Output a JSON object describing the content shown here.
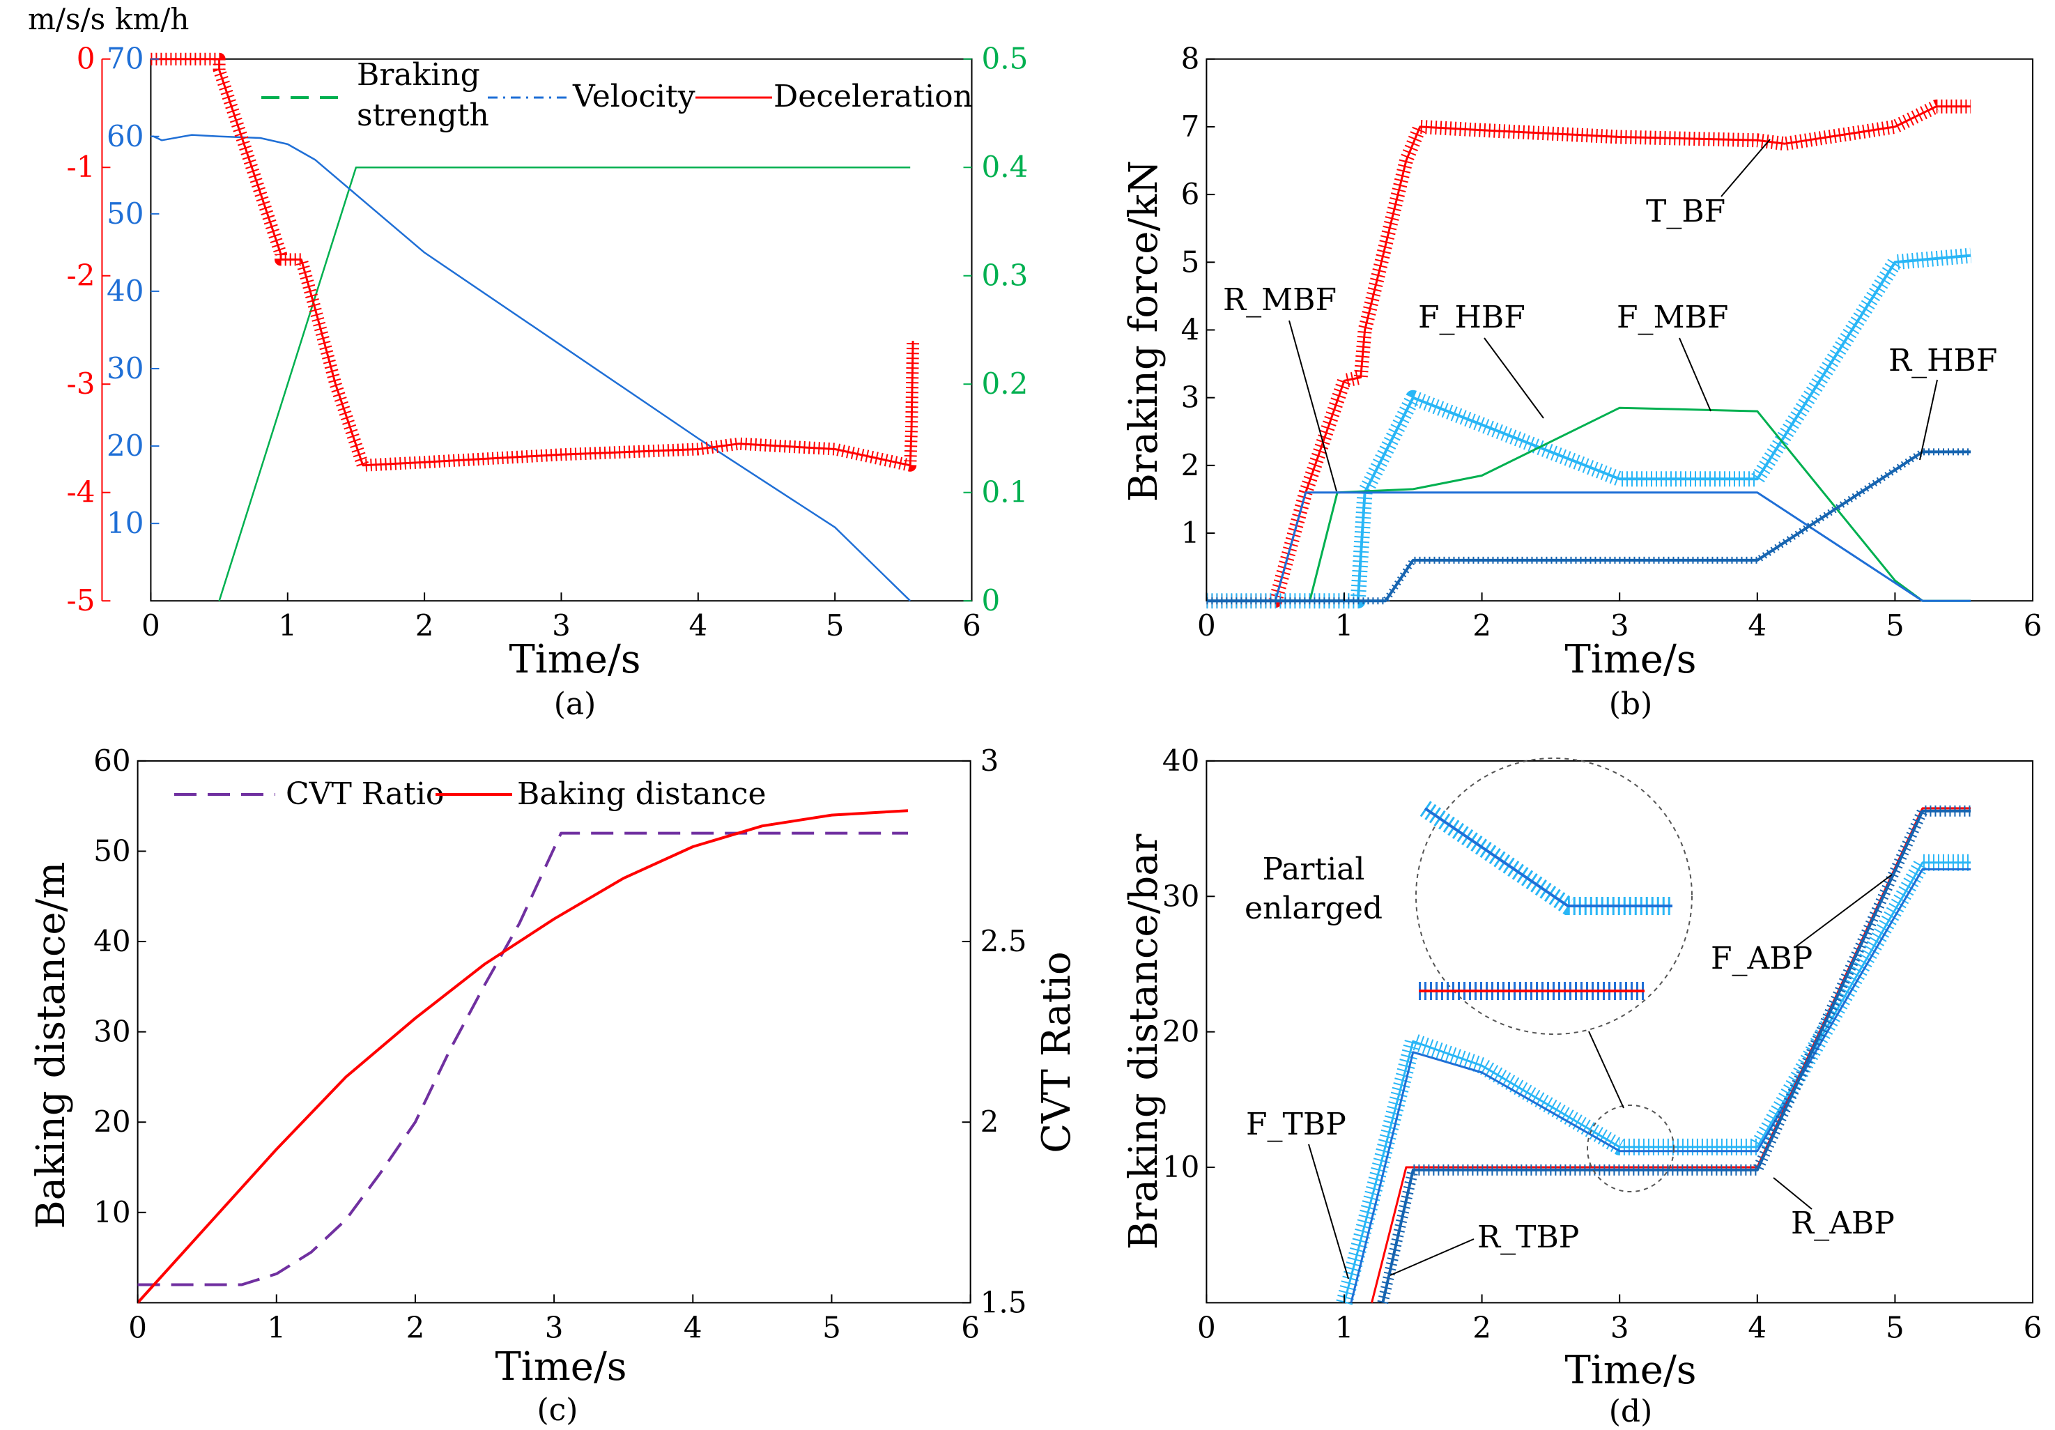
{
  "colors": {
    "red": "#ff0000",
    "green": "#00b050",
    "blue": "#1f6fd6",
    "dark_blue": "#1664b0",
    "light_blue": "#29b6f6",
    "purple": "#7030a0",
    "black": "#000000"
  },
  "chart_data": [
    {
      "id": "a",
      "type": "line",
      "caption": "(a)",
      "xlabel": "Time/s",
      "xlim": [
        0,
        6
      ],
      "xticks": [
        "0",
        "1",
        "2",
        "3",
        "4",
        "5",
        "6"
      ],
      "y_axes": [
        {
          "unit": "m/s/s",
          "ylim": [
            -5,
            0
          ],
          "ticks": [
            "0",
            "-1",
            "-2",
            "-3",
            "-4",
            "-5"
          ],
          "color": "#ff0000"
        },
        {
          "unit": "km/h",
          "ylim": [
            0,
            70
          ],
          "ticks": [
            "70",
            "60",
            "50",
            "40",
            "30",
            "20",
            "10"
          ],
          "color": "#1f6fd6"
        },
        {
          "unit": "",
          "ylim": [
            0,
            0.5
          ],
          "ticks": [
            "0.5",
            "0.4",
            "0.3",
            "0.2",
            "0.1",
            "0"
          ],
          "color": "#00b050"
        }
      ],
      "legend": [
        "Braking",
        "strength",
        "Velocity",
        "Deceleration"
      ],
      "series": [
        {
          "name": "Braking strength",
          "axis": 2,
          "color": "#00b050",
          "x": [
            0.5,
            1.5,
            5.55
          ],
          "y": [
            0,
            0.4,
            0.4
          ]
        },
        {
          "name": "Velocity",
          "axis": 1,
          "color": "#1f6fd6",
          "x": [
            0,
            0.02,
            0.08,
            0.3,
            0.5,
            0.8,
            1.0,
            1.2,
            1.4,
            1.6,
            2.0,
            3.0,
            4.0,
            5.0,
            5.55
          ],
          "y": [
            60,
            60,
            59.5,
            60.2,
            60,
            59.8,
            59,
            57,
            54,
            51,
            45,
            33,
            21,
            9.5,
            0
          ]
        },
        {
          "name": "Deceleration",
          "axis": 0,
          "color": "#ff0000",
          "x": [
            0,
            0.5,
            0.5,
            0.95,
            0.95,
            1.1,
            1.2,
            1.35,
            1.55,
            2.0,
            3.0,
            4.0,
            4.3,
            5.0,
            5.55,
            5.56,
            5.57
          ],
          "y": [
            0,
            0,
            -0.1,
            -1.8,
            -1.85,
            -1.85,
            -2.3,
            -3.0,
            -3.75,
            -3.72,
            -3.65,
            -3.6,
            -3.55,
            -3.6,
            -3.75,
            -3.4,
            -2.6
          ]
        }
      ]
    },
    {
      "id": "b",
      "type": "line",
      "caption": "(b)",
      "xlabel": "Time/s",
      "ylabel": "Braking force/kN",
      "xlim": [
        0,
        6
      ],
      "ylim": [
        0,
        8
      ],
      "xticks": [
        "0",
        "1",
        "2",
        "3",
        "4",
        "5",
        "6"
      ],
      "yticks": [
        "1",
        "2",
        "3",
        "4",
        "5",
        "6",
        "7",
        "8"
      ],
      "annotations": [
        "R_MBF",
        "F_HBF",
        "F_MBF",
        "R_HBF",
        "T_BF"
      ],
      "series": [
        {
          "name": "T_BF",
          "color": "#ff0000",
          "x": [
            0,
            0.5,
            0.72,
            1.0,
            1.12,
            1.15,
            1.45,
            1.55,
            2.0,
            3.0,
            4.0,
            4.2,
            5.0,
            5.3,
            5.55
          ],
          "y": [
            0,
            0,
            1.6,
            3.25,
            3.3,
            4.0,
            6.5,
            7.0,
            6.95,
            6.85,
            6.8,
            6.75,
            7.0,
            7.3,
            7.3
          ]
        },
        {
          "name": "F_HBF",
          "color": "#29b6f6",
          "x": [
            0,
            1.1,
            1.15,
            1.5,
            2.0,
            3.0,
            4.0,
            5.0,
            5.55
          ],
          "y": [
            0,
            0,
            1.6,
            3.0,
            2.6,
            1.8,
            1.8,
            5.0,
            5.1
          ]
        },
        {
          "name": "F_MBF",
          "color": "#00b050",
          "x": [
            0,
            0.75,
            0.95,
            1.5,
            2.0,
            3.0,
            4.0,
            5.0,
            5.2,
            5.55
          ],
          "y": [
            0,
            0,
            1.6,
            1.65,
            1.85,
            2.85,
            2.8,
            0.3,
            0,
            0
          ]
        },
        {
          "name": "R_MBF",
          "color": "#1f6fd6",
          "x": [
            0,
            0.5,
            0.72,
            4.0,
            5.2,
            5.55
          ],
          "y": [
            0,
            0,
            1.6,
            1.6,
            0,
            0
          ]
        },
        {
          "name": "R_HBF",
          "color": "#1664b0",
          "x": [
            0,
            1.3,
            1.5,
            4.0,
            5.2,
            5.55
          ],
          "y": [
            0,
            0,
            0.6,
            0.6,
            2.2,
            2.2
          ]
        }
      ]
    },
    {
      "id": "c",
      "type": "line",
      "caption": "(c)",
      "xlabel": "Time/s",
      "ylabel": "Baking distance/m",
      "ylabel_right": "CVT Ratio",
      "xlim": [
        0,
        6
      ],
      "ylim": [
        0,
        60
      ],
      "ylim_right": [
        1.5,
        3.0
      ],
      "xticks": [
        "0",
        "1",
        "2",
        "3",
        "4",
        "5",
        "6"
      ],
      "yticks": [
        "10",
        "20",
        "30",
        "40",
        "50",
        "60"
      ],
      "yticks_right": [
        "1.5",
        "2",
        "2.5",
        "3"
      ],
      "legend": [
        "CVT Ratio",
        "Baking distance"
      ],
      "series": [
        {
          "name": "CVT Ratio",
          "axis": 1,
          "color": "#7030a0",
          "x": [
            0,
            0.75,
            1.0,
            1.25,
            1.5,
            1.75,
            2.0,
            2.25,
            2.5,
            2.75,
            3.05,
            5.55
          ],
          "y": [
            1.55,
            1.55,
            1.58,
            1.64,
            1.73,
            1.86,
            2.0,
            2.2,
            2.38,
            2.55,
            2.8,
            2.8
          ]
        },
        {
          "name": "Baking distance",
          "axis": 0,
          "color": "#ff0000",
          "x": [
            0,
            0.5,
            1.0,
            1.5,
            2.0,
            2.5,
            3.0,
            3.5,
            4.0,
            4.5,
            5.0,
            5.55
          ],
          "y": [
            0,
            8.5,
            17,
            25,
            31.5,
            37.5,
            42.5,
            47,
            50.5,
            52.8,
            54,
            54.5
          ]
        }
      ]
    },
    {
      "id": "d",
      "type": "line",
      "caption": "(d)",
      "xlabel": "Time/s",
      "ylabel": "Braking distance/bar",
      "xlim": [
        0,
        6
      ],
      "ylim": [
        0,
        40
      ],
      "xticks": [
        "0",
        "1",
        "2",
        "3",
        "4",
        "5",
        "6"
      ],
      "yticks": [
        "10",
        "20",
        "30",
        "40"
      ],
      "annotations": [
        "Partial",
        "enlarged",
        "F_ABP",
        "F_TBP",
        "R_TBP",
        "R_ABP"
      ],
      "series": [
        {
          "name": "F_TBP",
          "color": "#29b6f6",
          "x": [
            1.0,
            1.5,
            2.0,
            3.0,
            4.0,
            5.2,
            5.55
          ],
          "y": [
            0,
            19.3,
            17.5,
            11.5,
            11.5,
            32.5,
            32.5
          ]
        },
        {
          "name": "F_ABP",
          "color": "#1f6fd6",
          "x": [
            1.05,
            1.5,
            2.0,
            3.0,
            4.0,
            5.2,
            5.55
          ],
          "y": [
            0,
            18.5,
            17.0,
            11.2,
            11.2,
            32.0,
            32.0
          ]
        },
        {
          "name": "R_TBP",
          "color": "#ff0000",
          "x": [
            1.2,
            1.45,
            4.0,
            5.2,
            5.55
          ],
          "y": [
            0,
            10,
            10,
            36.5,
            36.5
          ]
        },
        {
          "name": "R_ABP",
          "color": "#1664b0",
          "x": [
            1.28,
            1.5,
            4.0,
            5.2,
            5.55
          ],
          "y": [
            0,
            9.8,
            9.8,
            36.3,
            36.3
          ]
        }
      ]
    }
  ]
}
